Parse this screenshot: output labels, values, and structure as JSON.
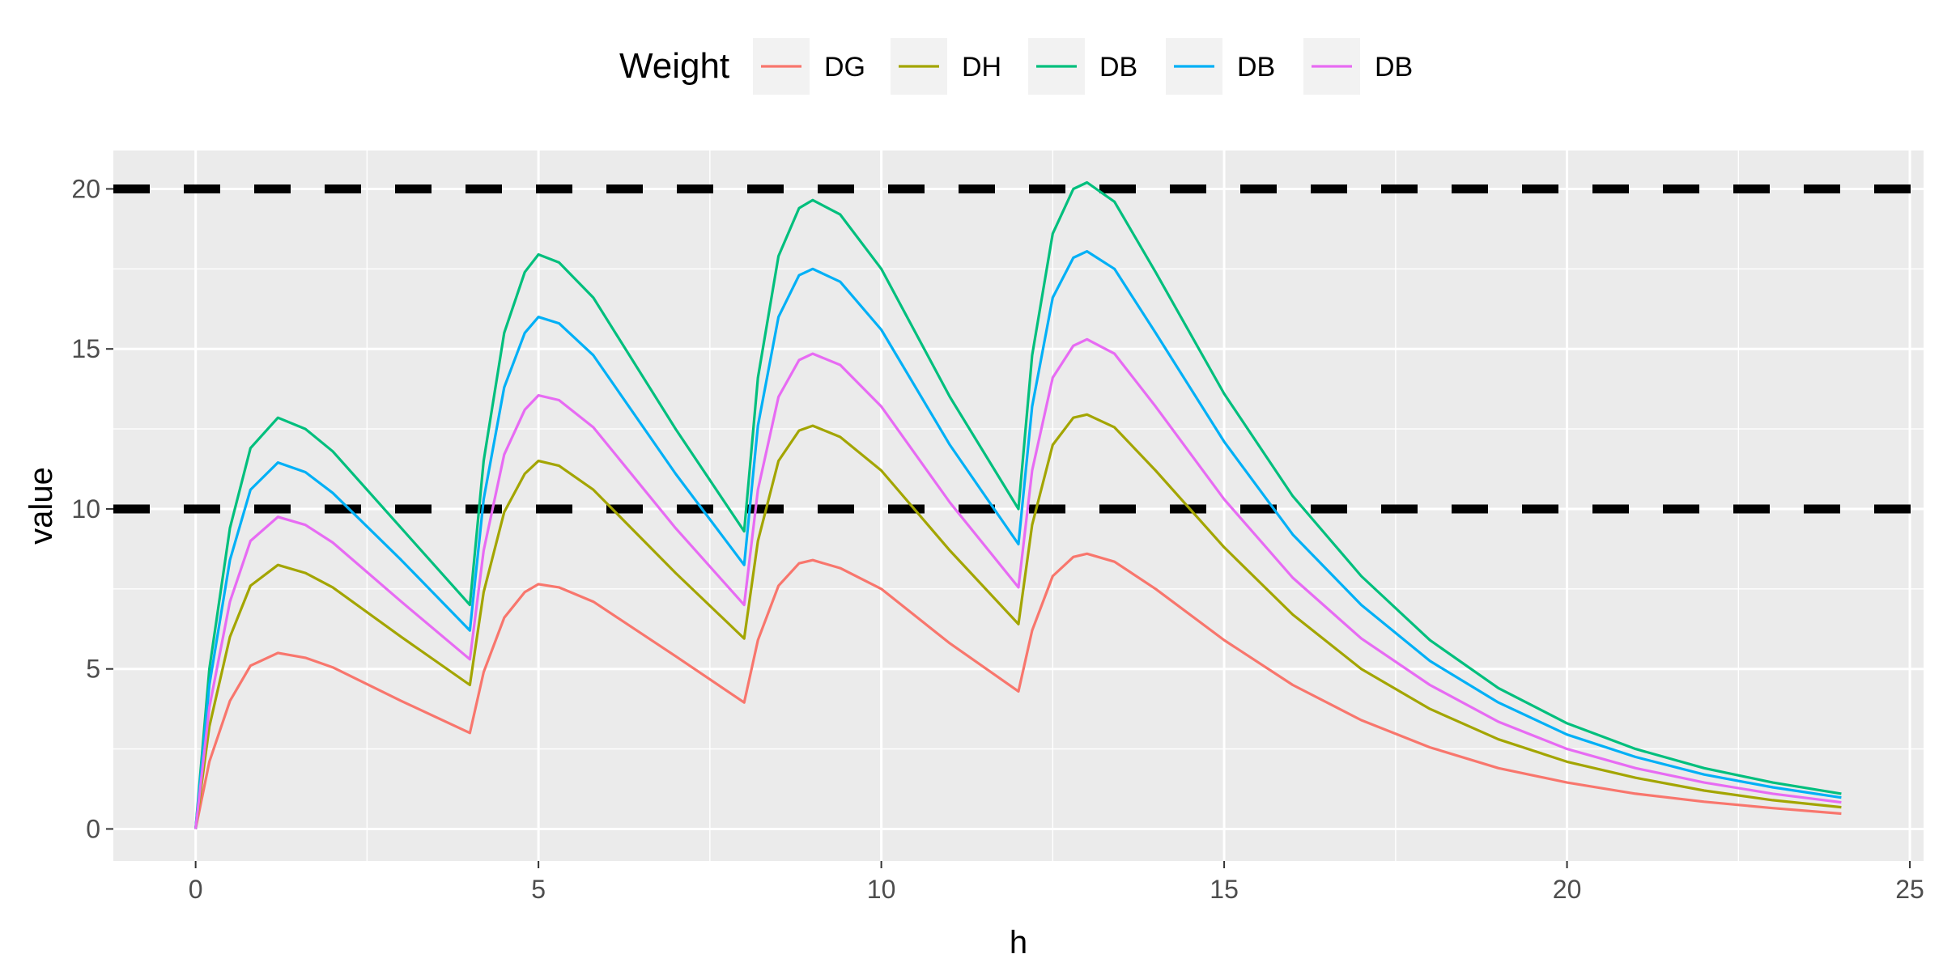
{
  "chart_data": {
    "type": "line",
    "title": "",
    "xlabel": "h",
    "ylabel": "value",
    "xlim": [
      -1.2,
      25.2
    ],
    "ylim": [
      -1,
      21.2
    ],
    "xticks": [
      0,
      5,
      10,
      15,
      20,
      25
    ],
    "yticks": [
      0,
      5,
      10,
      15,
      20
    ],
    "grid": true,
    "legend": {
      "title": "Weight",
      "position": "top"
    },
    "reference_lines": [
      {
        "y": 20,
        "style": "dashed",
        "color": "#000000"
      },
      {
        "y": 10,
        "style": "dashed",
        "color": "#000000"
      }
    ],
    "dose_times": [
      0,
      4,
      8,
      12
    ],
    "series": [
      {
        "name": "DG",
        "color": "#F8766D",
        "points": [
          [
            0,
            0
          ],
          [
            0.2,
            2.1
          ],
          [
            0.5,
            4.0
          ],
          [
            0.8,
            5.1
          ],
          [
            1.2,
            5.5
          ],
          [
            1.6,
            5.35
          ],
          [
            2.0,
            5.05
          ],
          [
            3.0,
            4.0
          ],
          [
            4.0,
            3.0
          ],
          [
            4.2,
            4.9
          ],
          [
            4.5,
            6.6
          ],
          [
            4.8,
            7.4
          ],
          [
            5.0,
            7.65
          ],
          [
            5.3,
            7.55
          ],
          [
            5.8,
            7.1
          ],
          [
            7.0,
            5.4
          ],
          [
            8.0,
            3.95
          ],
          [
            8.2,
            5.9
          ],
          [
            8.5,
            7.6
          ],
          [
            8.8,
            8.3
          ],
          [
            9.0,
            8.4
          ],
          [
            9.4,
            8.15
          ],
          [
            10.0,
            7.5
          ],
          [
            11.0,
            5.8
          ],
          [
            12.0,
            4.3
          ],
          [
            12.2,
            6.2
          ],
          [
            12.5,
            7.9
          ],
          [
            12.8,
            8.5
          ],
          [
            13.0,
            8.6
          ],
          [
            13.4,
            8.35
          ],
          [
            14.0,
            7.5
          ],
          [
            15.0,
            5.9
          ],
          [
            16.0,
            4.5
          ],
          [
            17.0,
            3.4
          ],
          [
            18.0,
            2.55
          ],
          [
            19.0,
            1.9
          ],
          [
            20.0,
            1.45
          ],
          [
            21.0,
            1.1
          ],
          [
            22.0,
            0.85
          ],
          [
            23.0,
            0.65
          ],
          [
            24.0,
            0.48
          ]
        ]
      },
      {
        "name": "DH",
        "color": "#A3A500",
        "points": [
          [
            0,
            0
          ],
          [
            0.2,
            3.2
          ],
          [
            0.5,
            6.0
          ],
          [
            0.8,
            7.6
          ],
          [
            1.2,
            8.25
          ],
          [
            1.6,
            8.0
          ],
          [
            2.0,
            7.55
          ],
          [
            3.0,
            6.0
          ],
          [
            4.0,
            4.5
          ],
          [
            4.2,
            7.4
          ],
          [
            4.5,
            9.9
          ],
          [
            4.8,
            11.1
          ],
          [
            5.0,
            11.5
          ],
          [
            5.3,
            11.35
          ],
          [
            5.8,
            10.6
          ],
          [
            7.0,
            8.0
          ],
          [
            8.0,
            5.95
          ],
          [
            8.2,
            9.0
          ],
          [
            8.5,
            11.5
          ],
          [
            8.8,
            12.45
          ],
          [
            9.0,
            12.6
          ],
          [
            9.4,
            12.25
          ],
          [
            10.0,
            11.2
          ],
          [
            11.0,
            8.7
          ],
          [
            12.0,
            6.4
          ],
          [
            12.2,
            9.5
          ],
          [
            12.5,
            12.0
          ],
          [
            12.8,
            12.85
          ],
          [
            13.0,
            12.95
          ],
          [
            13.4,
            12.55
          ],
          [
            14.0,
            11.2
          ],
          [
            15.0,
            8.8
          ],
          [
            16.0,
            6.7
          ],
          [
            17.0,
            5.0
          ],
          [
            18.0,
            3.75
          ],
          [
            19.0,
            2.8
          ],
          [
            20.0,
            2.1
          ],
          [
            21.0,
            1.6
          ],
          [
            22.0,
            1.2
          ],
          [
            23.0,
            0.9
          ],
          [
            24.0,
            0.68
          ]
        ]
      },
      {
        "name": "DB",
        "color": "#00BF7D",
        "points": [
          [
            0,
            0
          ],
          [
            0.2,
            5.0
          ],
          [
            0.5,
            9.4
          ],
          [
            0.8,
            11.9
          ],
          [
            1.2,
            12.85
          ],
          [
            1.6,
            12.5
          ],
          [
            2.0,
            11.8
          ],
          [
            3.0,
            9.4
          ],
          [
            4.0,
            7.0
          ],
          [
            4.2,
            11.5
          ],
          [
            4.5,
            15.5
          ],
          [
            4.8,
            17.4
          ],
          [
            5.0,
            17.95
          ],
          [
            5.3,
            17.7
          ],
          [
            5.8,
            16.6
          ],
          [
            7.0,
            12.5
          ],
          [
            8.0,
            9.3
          ],
          [
            8.2,
            14.1
          ],
          [
            8.5,
            17.9
          ],
          [
            8.8,
            19.4
          ],
          [
            9.0,
            19.65
          ],
          [
            9.4,
            19.2
          ],
          [
            10.0,
            17.5
          ],
          [
            11.0,
            13.5
          ],
          [
            12.0,
            10.0
          ],
          [
            12.2,
            14.8
          ],
          [
            12.5,
            18.6
          ],
          [
            12.8,
            20.0
          ],
          [
            13.0,
            20.2
          ],
          [
            13.4,
            19.6
          ],
          [
            14.0,
            17.4
          ],
          [
            15.0,
            13.6
          ],
          [
            16.0,
            10.4
          ],
          [
            17.0,
            7.9
          ],
          [
            18.0,
            5.9
          ],
          [
            19.0,
            4.4
          ],
          [
            20.0,
            3.3
          ],
          [
            21.0,
            2.5
          ],
          [
            22.0,
            1.9
          ],
          [
            23.0,
            1.45
          ],
          [
            24.0,
            1.1
          ]
        ]
      },
      {
        "name": "DB",
        "color": "#00B0F6",
        "points": [
          [
            0,
            0
          ],
          [
            0.2,
            4.5
          ],
          [
            0.5,
            8.4
          ],
          [
            0.8,
            10.6
          ],
          [
            1.2,
            11.45
          ],
          [
            1.6,
            11.15
          ],
          [
            2.0,
            10.5
          ],
          [
            3.0,
            8.4
          ],
          [
            4.0,
            6.2
          ],
          [
            4.2,
            10.3
          ],
          [
            4.5,
            13.8
          ],
          [
            4.8,
            15.5
          ],
          [
            5.0,
            16.0
          ],
          [
            5.3,
            15.8
          ],
          [
            5.8,
            14.8
          ],
          [
            7.0,
            11.1
          ],
          [
            8.0,
            8.25
          ],
          [
            8.2,
            12.6
          ],
          [
            8.5,
            16.0
          ],
          [
            8.8,
            17.3
          ],
          [
            9.0,
            17.5
          ],
          [
            9.4,
            17.1
          ],
          [
            10.0,
            15.6
          ],
          [
            11.0,
            12.0
          ],
          [
            12.0,
            8.9
          ],
          [
            12.2,
            13.2
          ],
          [
            12.5,
            16.6
          ],
          [
            12.8,
            17.85
          ],
          [
            13.0,
            18.05
          ],
          [
            13.4,
            17.5
          ],
          [
            14.0,
            15.5
          ],
          [
            15.0,
            12.1
          ],
          [
            16.0,
            9.2
          ],
          [
            17.0,
            7.0
          ],
          [
            18.0,
            5.25
          ],
          [
            19.0,
            3.95
          ],
          [
            20.0,
            2.95
          ],
          [
            21.0,
            2.25
          ],
          [
            22.0,
            1.7
          ],
          [
            23.0,
            1.3
          ],
          [
            24.0,
            0.98
          ]
        ]
      },
      {
        "name": "DB",
        "color": "#E76BF3",
        "points": [
          [
            0,
            0
          ],
          [
            0.2,
            3.8
          ],
          [
            0.5,
            7.1
          ],
          [
            0.8,
            9.0
          ],
          [
            1.2,
            9.75
          ],
          [
            1.6,
            9.5
          ],
          [
            2.0,
            8.95
          ],
          [
            3.0,
            7.1
          ],
          [
            4.0,
            5.3
          ],
          [
            4.2,
            8.7
          ],
          [
            4.5,
            11.7
          ],
          [
            4.8,
            13.1
          ],
          [
            5.0,
            13.55
          ],
          [
            5.3,
            13.4
          ],
          [
            5.8,
            12.55
          ],
          [
            7.0,
            9.4
          ],
          [
            8.0,
            7.0
          ],
          [
            8.2,
            10.6
          ],
          [
            8.5,
            13.5
          ],
          [
            8.8,
            14.65
          ],
          [
            9.0,
            14.85
          ],
          [
            9.4,
            14.5
          ],
          [
            10.0,
            13.2
          ],
          [
            11.0,
            10.2
          ],
          [
            12.0,
            7.55
          ],
          [
            12.2,
            11.2
          ],
          [
            12.5,
            14.1
          ],
          [
            12.8,
            15.1
          ],
          [
            13.0,
            15.3
          ],
          [
            13.4,
            14.85
          ],
          [
            14.0,
            13.2
          ],
          [
            15.0,
            10.3
          ],
          [
            16.0,
            7.85
          ],
          [
            17.0,
            5.95
          ],
          [
            18.0,
            4.5
          ],
          [
            19.0,
            3.35
          ],
          [
            20.0,
            2.5
          ],
          [
            21.0,
            1.9
          ],
          [
            22.0,
            1.45
          ],
          [
            23.0,
            1.1
          ],
          [
            24.0,
            0.83
          ]
        ]
      }
    ]
  }
}
